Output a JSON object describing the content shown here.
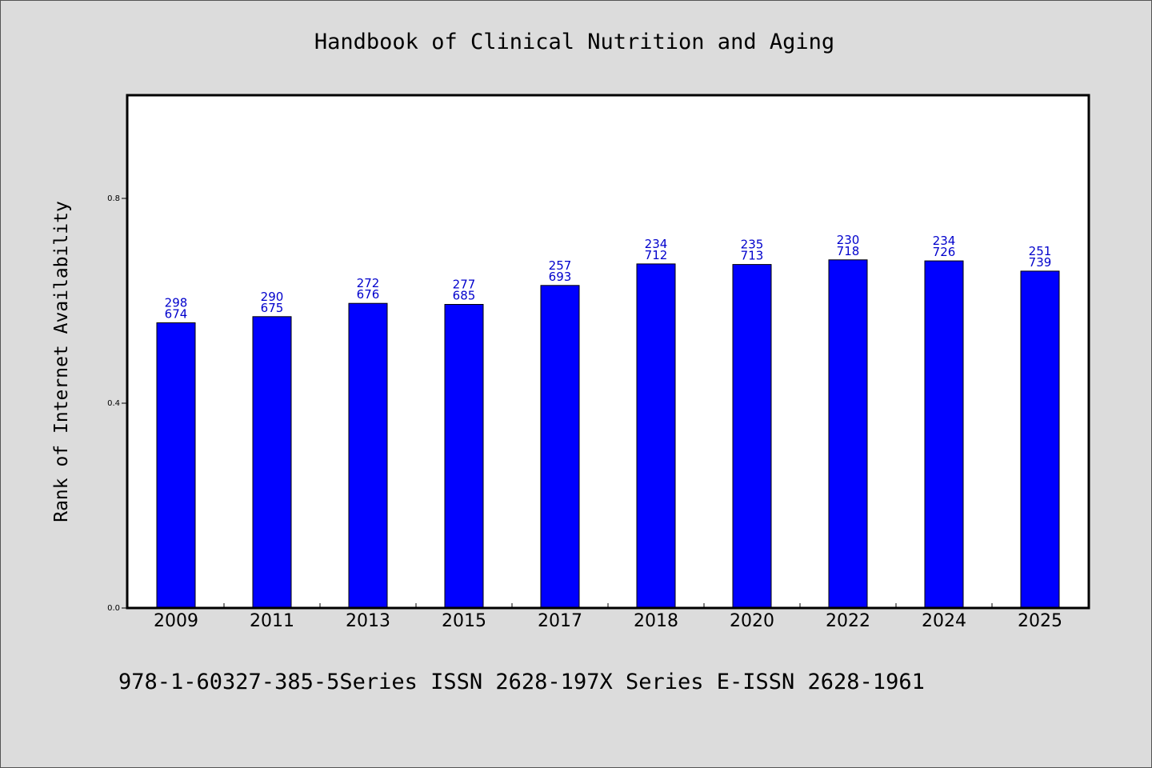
{
  "colors": {
    "background": "#dcdcdc",
    "plot_background": "#ffffff",
    "bar": "#0000ff",
    "bar_edge": "#000000",
    "data_label": "#0000cc",
    "axis": "#000000"
  },
  "chart_data": {
    "type": "bar",
    "title": "Handbook of Clinical Nutrition and Aging",
    "xlabel": "",
    "ylabel": "Rank of Internet Availability",
    "categories": [
      "2009",
      "2011",
      "2013",
      "2015",
      "2017",
      "2018",
      "2020",
      "2022",
      "2024",
      "2025"
    ],
    "values": [
      0.557,
      0.569,
      0.595,
      0.593,
      0.63,
      0.672,
      0.671,
      0.68,
      0.678,
      0.658
    ],
    "data_labels": [
      [
        "298",
        "674"
      ],
      [
        "290",
        "675"
      ],
      [
        "272",
        "676"
      ],
      [
        "277",
        "685"
      ],
      [
        "257",
        "693"
      ],
      [
        "234",
        "712"
      ],
      [
        "235",
        "713"
      ],
      [
        "230",
        "718"
      ],
      [
        "234",
        "726"
      ],
      [
        "251",
        "739"
      ]
    ],
    "ylim": [
      0,
      1.0
    ],
    "yticks": [
      0.0,
      0.4,
      0.8
    ],
    "ytick_labels": [
      "0.0",
      "0.4",
      "0.8"
    ],
    "grid": false,
    "legend": "none"
  },
  "footer": {
    "text": "978-1-60327-385-5Series ISSN 2628-197X Series E-ISSN 2628-1961"
  }
}
